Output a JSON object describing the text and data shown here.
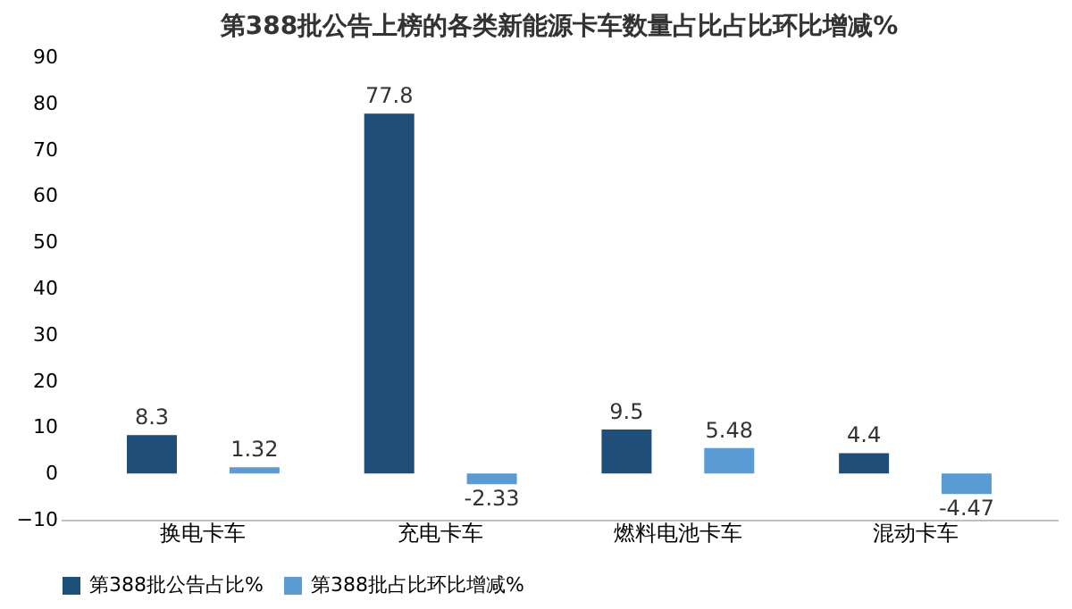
{
  "chart_data": {
    "type": "bar",
    "title": "第388批公告上榜的各类新能源卡车数量占比占比环比增减%",
    "categories": [
      "换电卡车",
      "充电卡车",
      "燃料电池卡车",
      "混动卡车"
    ],
    "series": [
      {
        "name": "第388批公告占比%",
        "color": "#1f4e79",
        "values": [
          8.3,
          77.8,
          9.5,
          4.4
        ]
      },
      {
        "name": "第388批占比环比增减%",
        "color": "#5b9bd5",
        "values": [
          1.32,
          -2.33,
          5.48,
          -4.47
        ]
      }
    ],
    "ylim": [
      -10,
      90
    ],
    "yticks": [
      -10,
      0,
      10,
      20,
      30,
      40,
      50,
      60,
      70,
      80,
      90
    ],
    "data_labels": true,
    "grid": false,
    "legend": "bottom"
  }
}
